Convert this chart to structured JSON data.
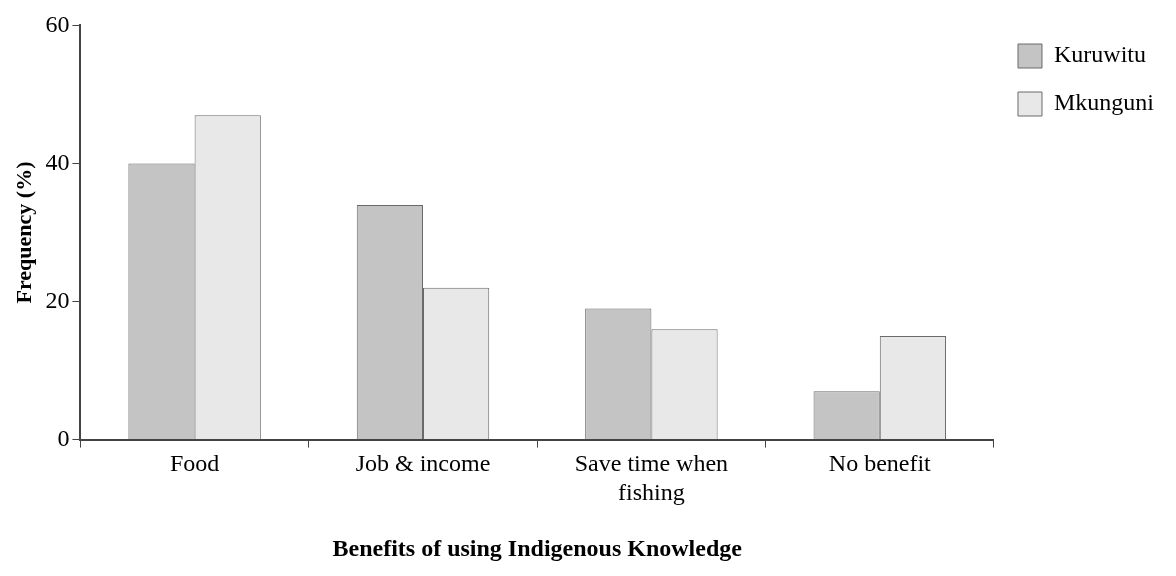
{
  "chart_data": {
    "type": "bar",
    "xlabel": "Benefits of using Indigenous Knowledge",
    "ylabel": "Frequency (%)",
    "categories": [
      "Food",
      "Job & income",
      "Save time when fishing",
      "No benefit"
    ],
    "series": [
      {
        "name": "Kuruwitu",
        "color": "#c4c4c4",
        "values": [
          40,
          34,
          19,
          7
        ]
      },
      {
        "name": "Mkunguni",
        "color": "#e8e8e8",
        "values": [
          47,
          22,
          16,
          15
        ]
      }
    ],
    "ylim": [
      0,
      60
    ],
    "yticks": [
      0,
      20,
      40,
      60
    ],
    "grid": false,
    "legend": "top right"
  }
}
